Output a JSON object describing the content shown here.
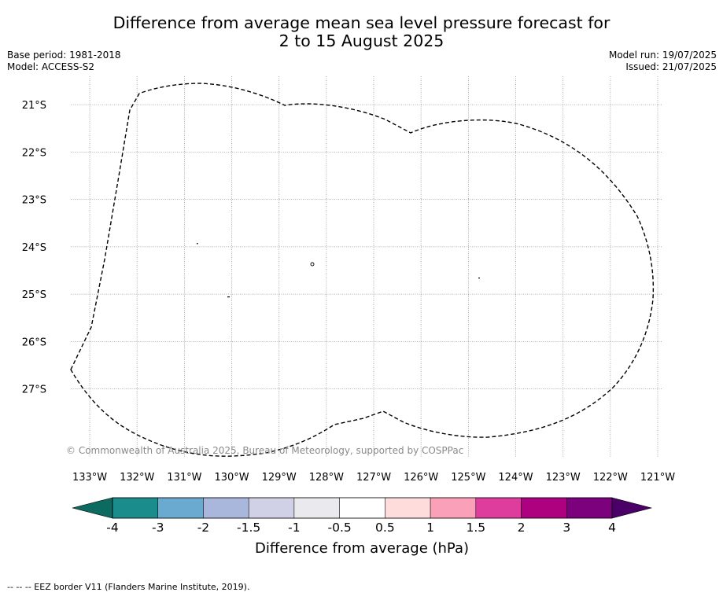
{
  "map": {
    "title_line1": "Difference from average mean sea level pressure forecast for",
    "title_line2": "2 to 15 August 2025",
    "base_period": "Base period: 1981-2018",
    "model": "Model: ACCESS-S2",
    "model_run": "Model run: 19/07/2025",
    "issued": "Issued: 21/07/2025",
    "copyright": "© Commonwealth of Australia 2025, Bureau of Meteorology, supported by COSPPac",
    "footnote": "-- -- -- EEZ border V11 (Flanders Marine Institute, 2019).",
    "lon_labels": [
      "133°W",
      "132°W",
      "131°W",
      "130°W",
      "129°W",
      "128°W",
      "127°W",
      "126°W",
      "125°W",
      "124°W",
      "123°W",
      "122°W",
      "121°W"
    ],
    "lat_labels": [
      "21°S",
      "22°S",
      "23°S",
      "24°S",
      "25°S",
      "26°S",
      "27°S"
    ],
    "lon_range": [
      -133.4,
      -120.9
    ],
    "lat_range": [
      -28.45,
      -20.4
    ],
    "grid": true,
    "border_color": "#000000"
  },
  "colorbar": {
    "title": "Difference from average (hPa)",
    "ticks": [
      "-4",
      "-3",
      "-2",
      "-1.5",
      "-1",
      "-0.5",
      "0.5",
      "1",
      "1.5",
      "2",
      "3",
      "4"
    ],
    "colors": [
      "#1a8c8c",
      "#6aaad1",
      "#a8b7db",
      "#d0d0e6",
      "#eaeaee",
      "#ffffff",
      "#ffdcdc",
      "#fba0b9",
      "#df3d9d",
      "#ae0180",
      "#7c017c"
    ],
    "under_color": "#0d6a61",
    "over_color": "#4a0066"
  }
}
